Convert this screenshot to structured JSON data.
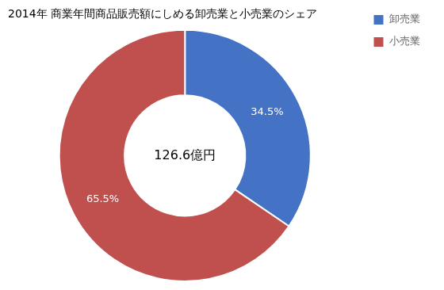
{
  "chart_data": {
    "type": "doughnut",
    "title": "2014年 商業年間商品販売額にしめる卸売業と小売業のシェア",
    "categories": [
      "卸売業",
      "小売業"
    ],
    "values": [
      34.5,
      65.5
    ],
    "value_labels": [
      "34.5%",
      "65.5%"
    ],
    "data_labels": true,
    "colors": [
      "#4472C4",
      "#C0504D"
    ],
    "annotations": [
      "126.6億円"
    ],
    "legend": "right"
  }
}
